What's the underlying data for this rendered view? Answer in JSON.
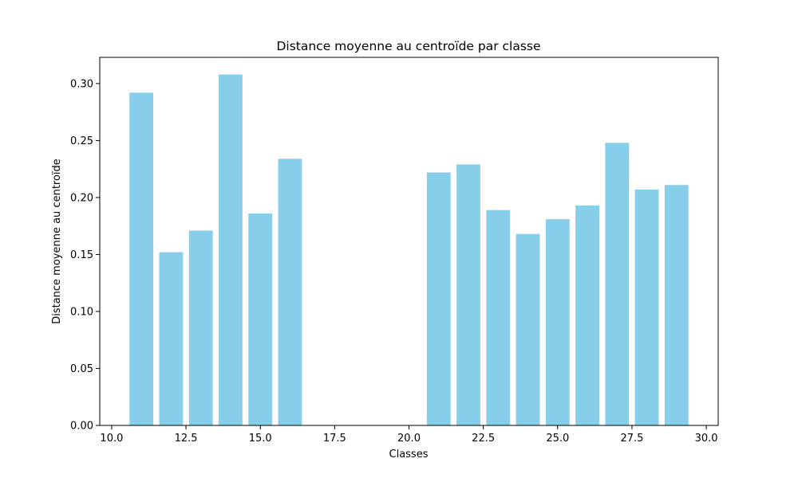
{
  "chart_data": {
    "type": "bar",
    "title": "Distance moyenne au centroïde par classe",
    "xlabel": "Classes",
    "ylabel": "Distance moyenne au centroïde",
    "xlim": [
      9.6,
      30.4
    ],
    "ylim": [
      0,
      0.323
    ],
    "xticks": [
      10.0,
      12.5,
      15.0,
      17.5,
      20.0,
      22.5,
      25.0,
      27.5,
      30.0
    ],
    "xtick_labels": [
      "10.0",
      "12.5",
      "15.0",
      "17.5",
      "20.0",
      "22.5",
      "25.0",
      "27.5",
      "30.0"
    ],
    "yticks": [
      0.0,
      0.05,
      0.1,
      0.15,
      0.2,
      0.25,
      0.3
    ],
    "ytick_labels": [
      "0.00",
      "0.05",
      "0.10",
      "0.15",
      "0.20",
      "0.25",
      "0.30"
    ],
    "bar_width": 0.8,
    "color": "#87CEEB",
    "grid": false,
    "x": [
      11,
      12,
      13,
      14,
      15,
      16,
      21,
      22,
      23,
      24,
      25,
      26,
      27,
      28,
      29
    ],
    "values": [
      0.292,
      0.152,
      0.171,
      0.308,
      0.186,
      0.234,
      0.222,
      0.229,
      0.189,
      0.168,
      0.181,
      0.193,
      0.248,
      0.207,
      0.211
    ]
  }
}
